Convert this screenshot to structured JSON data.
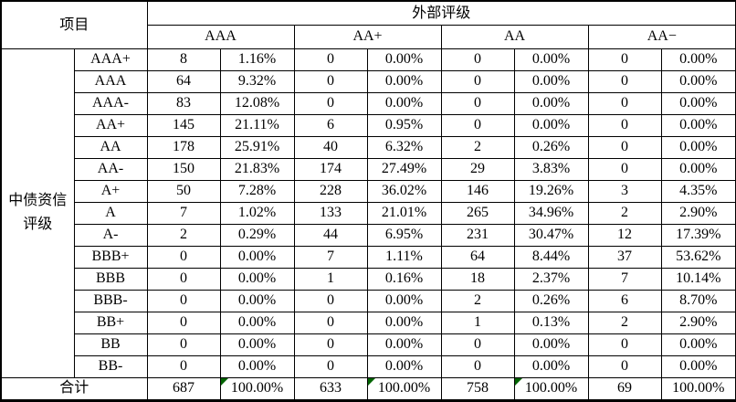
{
  "table": {
    "project_label": "项目",
    "external_rating_label": "外部评级",
    "external_rating_columns": [
      "AAA",
      "AA+",
      "AA",
      "AA−"
    ],
    "row_group_label": "中债资信评级",
    "rows": [
      {
        "rating": "AAA+",
        "values": [
          "8",
          "1.16%",
          "0",
          "0.00%",
          "0",
          "0.00%",
          "0",
          "0.00%"
        ]
      },
      {
        "rating": "AAA",
        "values": [
          "64",
          "9.32%",
          "0",
          "0.00%",
          "0",
          "0.00%",
          "0",
          "0.00%"
        ]
      },
      {
        "rating": "AAA-",
        "values": [
          "83",
          "12.08%",
          "0",
          "0.00%",
          "0",
          "0.00%",
          "0",
          "0.00%"
        ]
      },
      {
        "rating": "AA+",
        "values": [
          "145",
          "21.11%",
          "6",
          "0.95%",
          "0",
          "0.00%",
          "0",
          "0.00%"
        ]
      },
      {
        "rating": "AA",
        "values": [
          "178",
          "25.91%",
          "40",
          "6.32%",
          "2",
          "0.26%",
          "0",
          "0.00%"
        ]
      },
      {
        "rating": "AA-",
        "values": [
          "150",
          "21.83%",
          "174",
          "27.49%",
          "29",
          "3.83%",
          "0",
          "0.00%"
        ]
      },
      {
        "rating": "A+",
        "values": [
          "50",
          "7.28%",
          "228",
          "36.02%",
          "146",
          "19.26%",
          "3",
          "4.35%"
        ]
      },
      {
        "rating": "A",
        "values": [
          "7",
          "1.02%",
          "133",
          "21.01%",
          "265",
          "34.96%",
          "2",
          "2.90%"
        ]
      },
      {
        "rating": "A-",
        "values": [
          "2",
          "0.29%",
          "44",
          "6.95%",
          "231",
          "30.47%",
          "12",
          "17.39%"
        ]
      },
      {
        "rating": "BBB+",
        "values": [
          "0",
          "0.00%",
          "7",
          "1.11%",
          "64",
          "8.44%",
          "37",
          "53.62%"
        ]
      },
      {
        "rating": "BBB",
        "values": [
          "0",
          "0.00%",
          "1",
          "0.16%",
          "18",
          "2.37%",
          "7",
          "10.14%"
        ]
      },
      {
        "rating": "BBB-",
        "values": [
          "0",
          "0.00%",
          "0",
          "0.00%",
          "2",
          "0.26%",
          "6",
          "8.70%"
        ]
      },
      {
        "rating": "BB+",
        "values": [
          "0",
          "0.00%",
          "0",
          "0.00%",
          "1",
          "0.13%",
          "2",
          "2.90%"
        ]
      },
      {
        "rating": "BB",
        "values": [
          "0",
          "0.00%",
          "0",
          "0.00%",
          "0",
          "0.00%",
          "0",
          "0.00%"
        ]
      },
      {
        "rating": "BB-",
        "values": [
          "0",
          "0.00%",
          "0",
          "0.00%",
          "0",
          "0.00%",
          "0",
          "0.00%"
        ]
      }
    ],
    "total_row": {
      "label": "合计",
      "values": [
        "687",
        "100.00%",
        "633",
        "100.00%",
        "758",
        "100.00%",
        "69",
        "100.00%"
      ],
      "flag_marker_indices": [
        1,
        3,
        5
      ]
    },
    "colors": {
      "border": "#000000",
      "background": "#ffffff",
      "text": "#000000",
      "flag_triangle": "#006400"
    }
  }
}
